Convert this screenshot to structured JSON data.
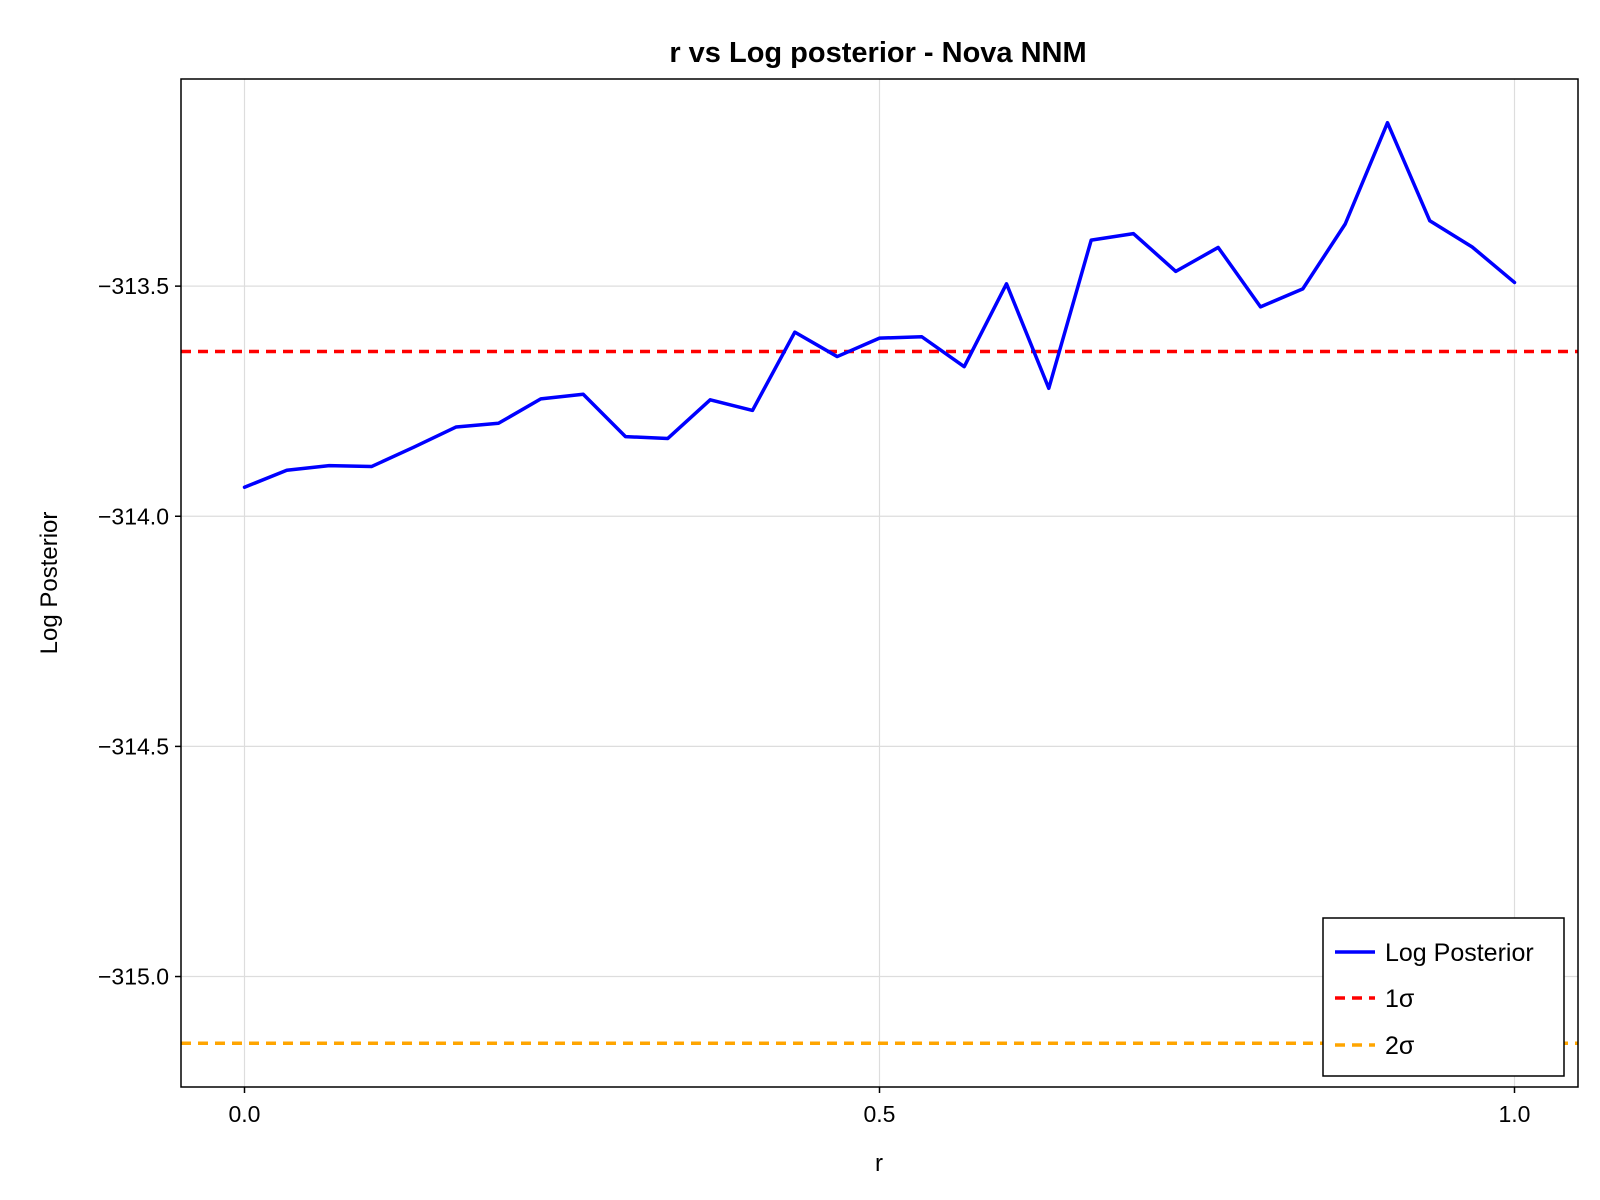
{
  "chart_data": {
    "type": "line",
    "title": "r vs Log posterior - Nova NNM",
    "xlabel": "r",
    "ylabel": "Log Posterior",
    "xlim": [
      -0.05,
      1.05
    ],
    "ylim": [
      -315.24,
      -313.05
    ],
    "xticks": [
      0.0,
      0.5,
      1.0
    ],
    "xtick_labels": [
      "0.0",
      "0.5",
      "1.0"
    ],
    "yticks": [
      -313.5,
      -314.0,
      -314.5,
      -315.0
    ],
    "ytick_labels": [
      "−313.5",
      "−314.0",
      "−314.5",
      "−315.0"
    ],
    "grid": true,
    "legend_position": "bottom-right",
    "series": [
      {
        "name": "Log Posterior",
        "style": "solid",
        "color": "#0000ff",
        "x": [
          0.0,
          0.0333,
          0.0667,
          0.1,
          0.1333,
          0.1667,
          0.2,
          0.2333,
          0.2667,
          0.3,
          0.3333,
          0.3667,
          0.4,
          0.4333,
          0.4667,
          0.5,
          0.5333,
          0.5667,
          0.6,
          0.6333,
          0.6667,
          0.7,
          0.7333,
          0.7667,
          0.8,
          0.8333,
          0.8667,
          0.9,
          0.9333,
          0.9667,
          1.0
        ],
        "y": [
          -313.937,
          -313.9,
          -313.89,
          -313.892,
          -313.85,
          -313.806,
          -313.798,
          -313.745,
          -313.735,
          -313.827,
          -313.831,
          -313.747,
          -313.77,
          -313.6,
          -313.653,
          -313.613,
          -313.61,
          -313.675,
          -313.495,
          -313.722,
          -313.4,
          -313.386,
          -313.468,
          -313.416,
          -313.545,
          -313.506,
          -313.365,
          -313.145,
          -313.358,
          -313.415,
          -313.492
        ]
      },
      {
        "name": "1σ",
        "style": "dashed",
        "color": "#ff0000",
        "y_const": -313.642
      },
      {
        "name": "2σ",
        "style": "dashed",
        "color": "#ffa500",
        "y_const": -315.145
      }
    ]
  }
}
